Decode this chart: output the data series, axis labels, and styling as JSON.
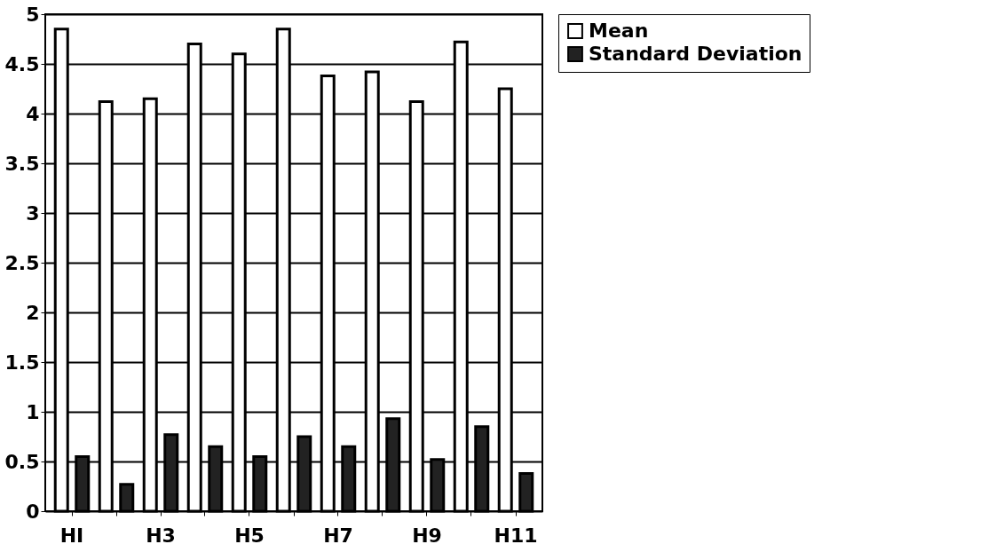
{
  "chart_data": {
    "type": "bar",
    "categories": [
      "HI",
      null,
      "H3",
      null,
      "H5",
      null,
      "H7",
      null,
      "H9",
      null,
      "H11"
    ],
    "series": [
      {
        "name": "Mean",
        "color": "#ffffff",
        "values": [
          4.85,
          4.12,
          4.15,
          4.7,
          4.6,
          4.85,
          4.38,
          4.42,
          4.12,
          4.72,
          4.25
        ]
      },
      {
        "name": "Standard Deviation",
        "color": "#222222",
        "values": [
          0.55,
          0.27,
          0.77,
          0.65,
          0.55,
          0.75,
          0.65,
          0.93,
          0.52,
          0.85,
          0.38
        ]
      }
    ],
    "ylim": [
      0,
      5
    ],
    "yticks": [
      0,
      0.5,
      1,
      1.5,
      2,
      2.5,
      3,
      3.5,
      4,
      4.5,
      5
    ],
    "grid": "y",
    "legend": "right"
  }
}
